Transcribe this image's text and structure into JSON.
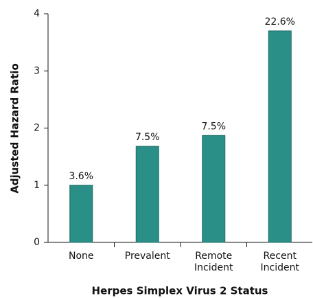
{
  "chart_data": {
    "type": "bar",
    "categories": [
      [
        "None"
      ],
      [
        "Prevalent"
      ],
      [
        "Remote",
        "Incident"
      ],
      [
        "Recent",
        "Incident"
      ]
    ],
    "values": [
      1.0,
      1.68,
      1.87,
      3.7
    ],
    "annotations": [
      "3.6%",
      "7.5%",
      "7.5%",
      "22.6%"
    ],
    "color": "#2a9087",
    "x_label": "Herpes Simplex Virus 2 Status",
    "y_label": "Adjusted Hazard Ratio",
    "ylim": [
      0,
      4
    ],
    "yticks": [
      0,
      1,
      2,
      3,
      4
    ],
    "grid": false
  }
}
